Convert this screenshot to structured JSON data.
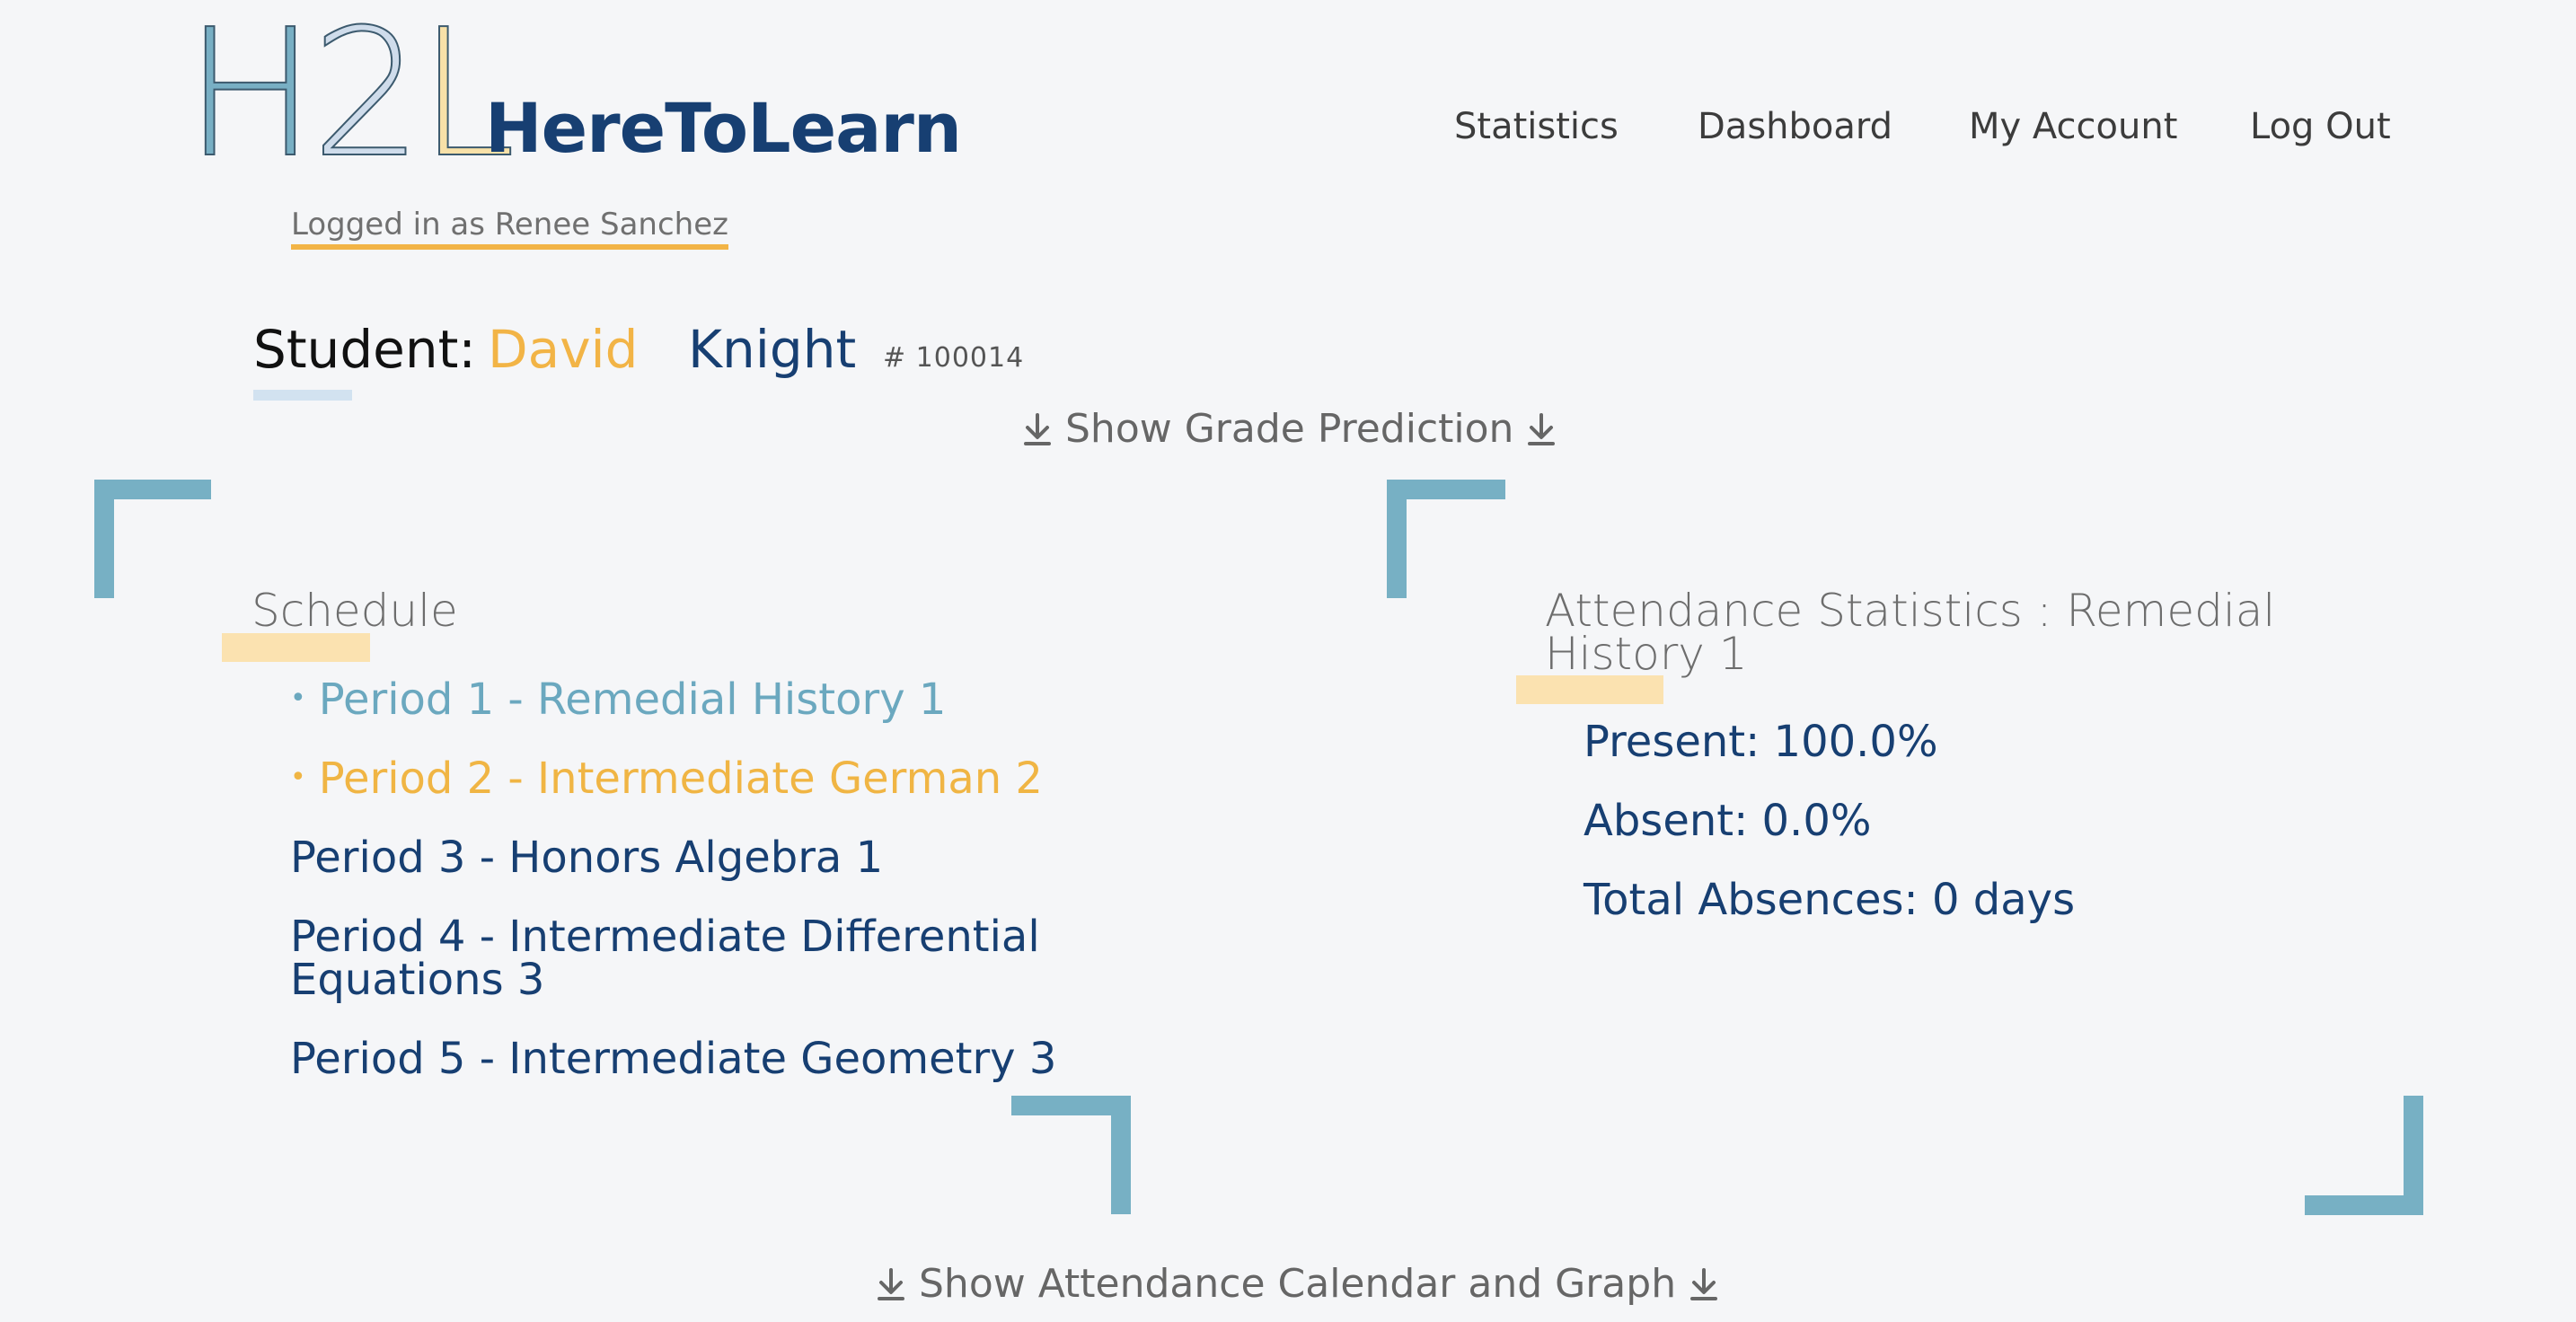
{
  "header": {
    "logo_text": "H2L",
    "logo_h": "H",
    "logo_2": "2",
    "logo_l": "L",
    "brand": "HereToLearn",
    "nav": [
      "Statistics",
      "Dashboard",
      "My Account",
      "Log Out"
    ],
    "login_status": "Logged in as Renee Sanchez"
  },
  "student": {
    "label": "Student:",
    "first_name": "David",
    "last_name": "Knight",
    "id": "# 100014"
  },
  "toggles": {
    "grade_prediction": "Show Grade Prediction",
    "attendance_calendar": "Show Attendance Calendar and Graph",
    "arrow_icon": "download-arrow-icon"
  },
  "schedule": {
    "title": "Schedule",
    "items": [
      "Period 1 - Remedial History 1",
      "Period 2 - Intermediate German 2",
      "Period 3 - Honors Algebra 1",
      "Period 4 - Intermediate Differential Equations 3",
      "Period 5 - Intermediate Geometry 3"
    ]
  },
  "attendance": {
    "title": "Attendance Statistics : Remedial History 1",
    "present": "Present: 100.0%",
    "absent": "Absent: 0.0%",
    "total_absences": "Total Absences: 0 days"
  },
  "colors": {
    "background": "#f5f6f8",
    "navy": "#173f72",
    "gold": "#f2b446",
    "teal": "#77b0c4",
    "light_blue": "#d2e2f0",
    "pale_gold": "#fbe2b0"
  }
}
